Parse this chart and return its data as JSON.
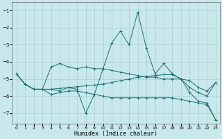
{
  "xlabel": "Humidex (Indice chaleur)",
  "background_color": "#c8e8ec",
  "grid_color": "#a8cdd4",
  "line_color": "#1a7070",
  "xlim": [
    -0.5,
    23.5
  ],
  "ylim": [
    -7.6,
    -0.5
  ],
  "yticks": [
    -7,
    -6,
    -5,
    -4,
    -3,
    -2,
    -1
  ],
  "xticks": [
    0,
    1,
    2,
    3,
    4,
    5,
    6,
    7,
    8,
    9,
    10,
    11,
    12,
    13,
    14,
    15,
    16,
    17,
    18,
    19,
    20,
    21,
    22,
    23
  ],
  "lines": [
    {
      "x": [
        0,
        1,
        2,
        3,
        4,
        5,
        6,
        7,
        8,
        9,
        10,
        11,
        12,
        13,
        14,
        15,
        16,
        17,
        18,
        19,
        20,
        21,
        22,
        23
      ],
      "y": [
        -4.7,
        -5.3,
        -5.6,
        -5.6,
        -4.3,
        -4.1,
        -4.3,
        -4.4,
        -4.3,
        -4.4,
        -4.4,
        -4.5,
        -4.6,
        -4.7,
        -4.8,
        -4.9,
        -4.9,
        -5.0,
        -5.0,
        -5.0,
        -5.1,
        -5.5,
        -5.7,
        -5.2
      ],
      "marker": true
    },
    {
      "x": [
        0,
        1,
        2,
        3,
        4,
        5,
        6,
        7,
        8,
        9,
        10,
        11,
        12,
        13,
        14,
        15,
        16,
        17,
        18,
        19,
        20,
        21,
        22,
        23
      ],
      "y": [
        -4.7,
        -5.3,
        -5.6,
        -5.6,
        -5.6,
        -5.7,
        -5.5,
        -5.6,
        -7.0,
        -5.9,
        -4.4,
        -2.9,
        -2.2,
        -3.0,
        -1.1,
        -3.2,
        -4.7,
        -4.1,
        -4.7,
        -5.0,
        -5.8,
        -6.3,
        -6.4,
        -7.4
      ],
      "marker": true
    },
    {
      "x": [
        0,
        1,
        2,
        3,
        4,
        5,
        6,
        7,
        8,
        9,
        10,
        11,
        12,
        13,
        14,
        15,
        16,
        17,
        18,
        19,
        20,
        21,
        22,
        23
      ],
      "y": [
        -4.7,
        -5.3,
        -5.6,
        -5.6,
        -5.6,
        -5.55,
        -5.5,
        -5.45,
        -5.4,
        -5.35,
        -5.3,
        -5.2,
        -5.1,
        -5.0,
        -4.9,
        -4.85,
        -4.8,
        -4.75,
        -4.75,
        -5.0,
        -5.5,
        -5.8,
        -6.0,
        -5.2
      ],
      "marker": true
    },
    {
      "x": [
        0,
        1,
        2,
        3,
        4,
        5,
        6,
        7,
        8,
        9,
        10,
        11,
        12,
        13,
        14,
        15,
        16,
        17,
        18,
        19,
        20,
        21,
        22,
        23
      ],
      "y": [
        -4.7,
        -5.3,
        -5.6,
        -5.6,
        -5.9,
        -5.8,
        -5.7,
        -5.7,
        -5.8,
        -5.9,
        -6.0,
        -6.1,
        -6.1,
        -6.1,
        -6.1,
        -6.1,
        -6.1,
        -6.1,
        -6.1,
        -6.2,
        -6.3,
        -6.4,
        -6.5,
        -7.4
      ],
      "marker": true
    }
  ]
}
